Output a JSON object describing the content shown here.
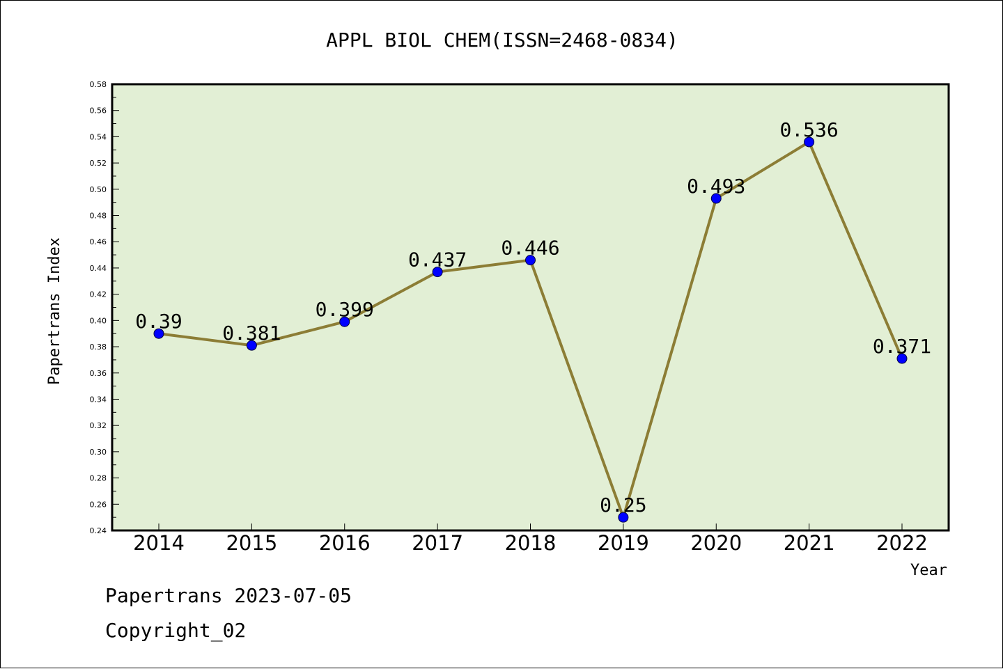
{
  "chart_data": {
    "type": "line",
    "title": "APPL BIOL CHEM(ISSN=2468-0834)",
    "xlabel": "Year",
    "ylabel": "Papertrans Index",
    "categories": [
      "2014",
      "2015",
      "2016",
      "2017",
      "2018",
      "2019",
      "2020",
      "2021",
      "2022"
    ],
    "series": [
      {
        "values": [
          0.39,
          0.381,
          0.399,
          0.437,
          0.446,
          0.25,
          0.493,
          0.536,
          0.371
        ],
        "labels": [
          "0.39",
          "0.381",
          "0.399",
          "0.437",
          "0.446",
          "0.25",
          "0.493",
          "0.536",
          "0.371"
        ]
      }
    ],
    "ylim": [
      0.24,
      0.58
    ],
    "yticks": [
      "0.24",
      "0.26",
      "0.28",
      "0.30",
      "0.32",
      "0.34",
      "0.36",
      "0.38",
      "0.40",
      "0.42",
      "0.44",
      "0.46",
      "0.48",
      "0.50",
      "0.52",
      "0.54",
      "0.56",
      "0.58"
    ],
    "grid": false,
    "colors": {
      "plot_background": "#e2efd5",
      "line": "#8c7d35",
      "marker": "#0000ff"
    }
  },
  "footer": {
    "credit": "Papertrans 2023-07-05",
    "copyright": "Copyright_02"
  }
}
